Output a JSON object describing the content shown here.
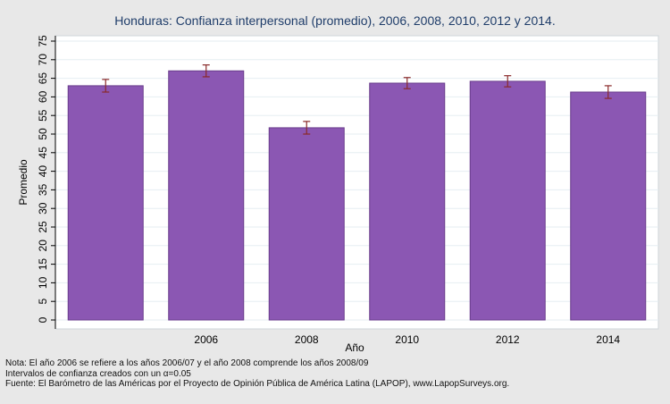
{
  "chart_data": {
    "type": "bar",
    "title": "Honduras: Confianza interpersonal (promedio), 2006, 2008, 2010, 2012 y 2014.",
    "xlabel": "Año",
    "ylabel": "Promedio",
    "categories": [
      "",
      "2006",
      "2008",
      "2010",
      "2012",
      "2014"
    ],
    "values": [
      63.0,
      67.0,
      51.7,
      63.7,
      64.2,
      61.3
    ],
    "ci_low": [
      61.3,
      65.4,
      50.0,
      62.2,
      62.7,
      59.6
    ],
    "ci_high": [
      64.7,
      68.6,
      53.4,
      65.2,
      65.7,
      63.0
    ],
    "ylim": [
      0,
      75
    ],
    "yticks": [
      0,
      5,
      10,
      15,
      20,
      25,
      30,
      35,
      40,
      45,
      50,
      55,
      60,
      65,
      70,
      75
    ],
    "grid": true,
    "colors": {
      "bar": "#8b57b3",
      "bar_edge": "#6a3d8c",
      "error": "#8a2a2a",
      "plot_bg": "#ffffff",
      "frame_bg": "#e8e8e8",
      "grid": "#e6eef2",
      "title": "#1f3d6a"
    }
  },
  "notes": {
    "line1": "Nota: El año 2006 se refiere a los años 2006/07 y el año 2008 comprende los años 2008/09",
    "line2": "Intervalos de confianza creados con un α=0.05",
    "line3": "Fuente: El Barómetro de las Américas por el Proyecto de Opinión Pública de América Latina (LAPOP), www.LapopSurveys.org."
  }
}
